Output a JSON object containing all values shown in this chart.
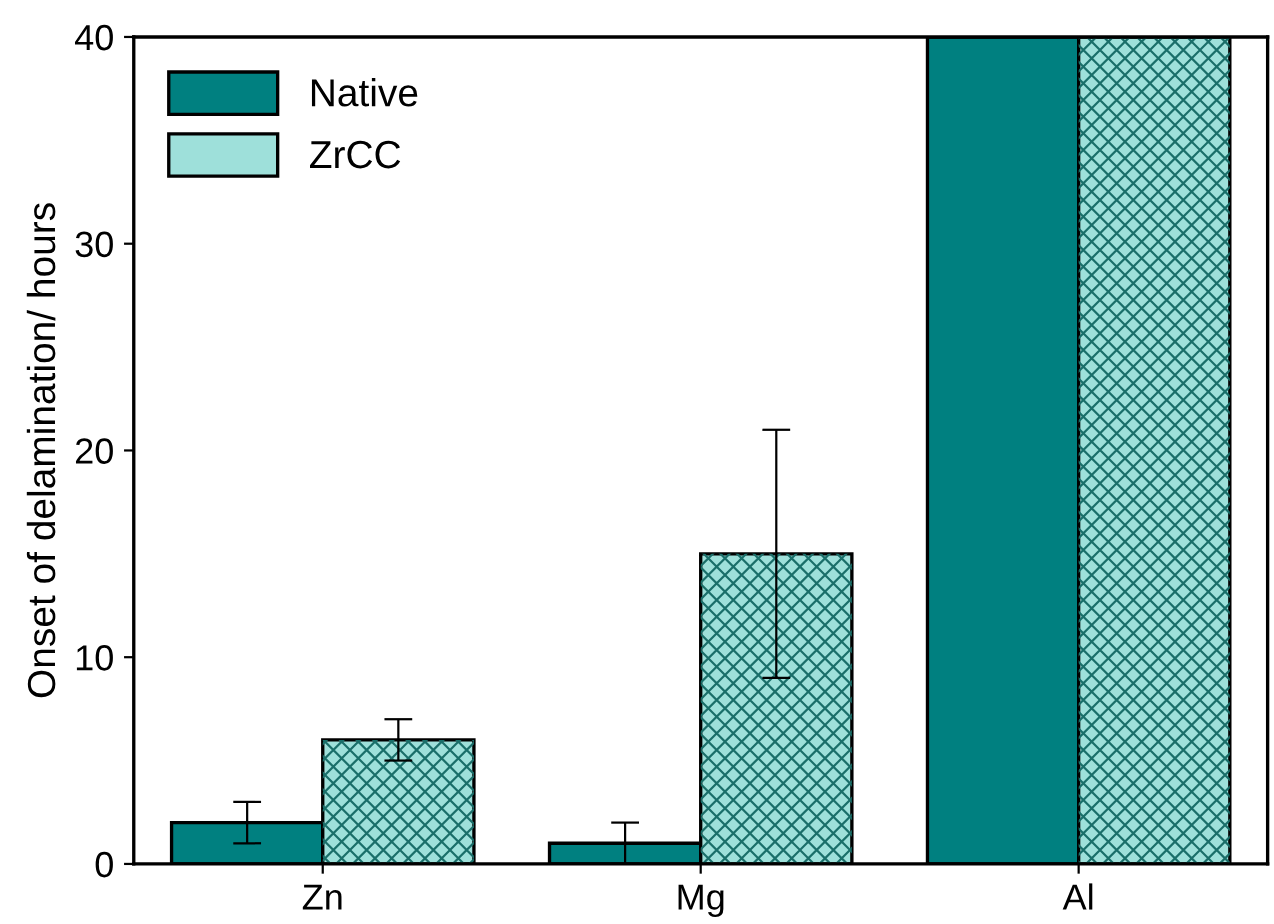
{
  "chart_data": {
    "type": "bar",
    "ylabel": "Onset of delamination/ hours",
    "categories": [
      "Zn",
      "Mg",
      "Al"
    ],
    "series": [
      {
        "name": "Native",
        "color": "#008080",
        "values": [
          2,
          1,
          40
        ],
        "errors": [
          1,
          1,
          null
        ]
      },
      {
        "name": "ZrCC",
        "color": "#9ee0da",
        "values": [
          6,
          15,
          40
        ],
        "errors": [
          1,
          6,
          null
        ]
      }
    ],
    "ylim": [
      0,
      40
    ],
    "yticks": [
      0,
      10,
      20,
      30,
      40
    ],
    "legend": "top left",
    "grid": false
  }
}
